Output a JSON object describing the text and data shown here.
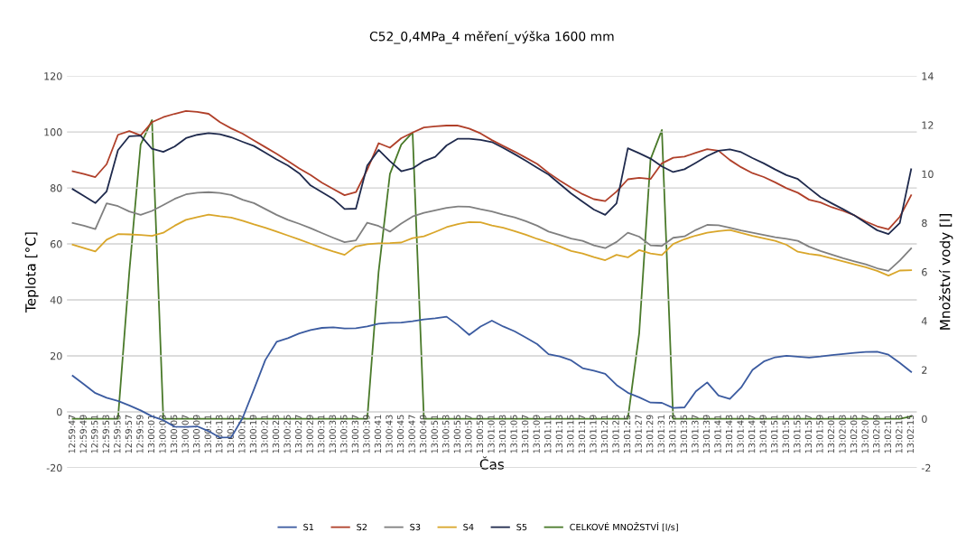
{
  "chart_data": {
    "type": "line",
    "title": "C52_0,4MPa_4 měření_výška 1600 mm",
    "xlabel": "Čas",
    "ylabel": "Teplota [°C]",
    "y2label": "Množství vody [l]",
    "categories": [
      "12:59:47",
      "12:59:49",
      "12:59:51",
      "12:59:53",
      "12:59:55",
      "12:59:57",
      "12:59:59",
      "13:00:01",
      "13:00:03",
      "13:00:05",
      "13:00:07",
      "13:00:09",
      "13:00:11",
      "13:00:13",
      "13:00:15",
      "13:00:17",
      "13:00:19",
      "13:00:21",
      "13:00:23",
      "13:00:25",
      "13:00:27",
      "13:00:29",
      "13:00:31",
      "13:00:33",
      "13:00:35",
      "13:00:37",
      "13:00:39",
      "13:00:41",
      "13:00:43",
      "13:00:45",
      "13:00:47",
      "13:00:49",
      "13:00:51",
      "13:00:53",
      "13:00:55",
      "13:00:57",
      "13:00:59",
      "13:01:01",
      "13:01:03",
      "13:01:05",
      "13:01:07",
      "13:01:09",
      "13:01:11",
      "13:01:13",
      "13:01:15",
      "13:01:17",
      "13:01:19",
      "13:01:21",
      "13:01:23",
      "13:01:25",
      "13:01:27",
      "13:01:29",
      "13:01:31",
      "13:01:33",
      "13:01:35",
      "13:01:37",
      "13:01:39",
      "13:01:41",
      "13:01:43",
      "13:01:45",
      "13:01:47",
      "13:01:49",
      "13:01:51",
      "13:01:53",
      "13:01:55",
      "13:01:57",
      "13:01:59",
      "13:02:01",
      "13:02:03",
      "13:02:05",
      "13:02:07",
      "13:02:09",
      "13:02:11",
      "13:02:13",
      "13:02:15"
    ],
    "series": [
      {
        "name": "S1",
        "color": "#3b5ba0",
        "values": [
          12.9,
          9.8,
          6.7,
          5,
          3.9,
          2.3,
          0.5,
          -1.6,
          -3,
          -5.3,
          -5.4,
          -5.2,
          -6.9,
          -9.2,
          -9.1,
          -2.2,
          8,
          18.5,
          25,
          26.3,
          28,
          29.2,
          30,
          30.2,
          29.8,
          29.9,
          30.5,
          31.5,
          31.8,
          31.9,
          32.4,
          33,
          33.4,
          34,
          31,
          27.5,
          30.5,
          32.6,
          30.5,
          28.8,
          26.5,
          24.2,
          20.6,
          19.8,
          18.4,
          15.6,
          14.7,
          13.6,
          9.6,
          6.8,
          5.2,
          3.3,
          3.2,
          1.4,
          1.6,
          7.3,
          10.5,
          5.8,
          4.6,
          8.7,
          15,
          18,
          19.5,
          20,
          19.7,
          19.4,
          19.8,
          20.3,
          20.7,
          21.1,
          21.4,
          21.5,
          20.4,
          17.5,
          14.3
        ]
      },
      {
        "name": "S2",
        "color": "#b0402a",
        "values": [
          86,
          85,
          83.9,
          88.5,
          99,
          100.3,
          98.8,
          103.5,
          105.3,
          106.5,
          107.5,
          107.2,
          106.5,
          103.5,
          101.3,
          99.4,
          97,
          94.6,
          92.2,
          89.6,
          87,
          84.6,
          81.9,
          79.6,
          77.4,
          78.5,
          86.5,
          96,
          94.4,
          97.8,
          99.8,
          101.6,
          102,
          102.3,
          102.3,
          101.2,
          99.5,
          97.1,
          95,
          93,
          90.8,
          88.6,
          85.4,
          82.6,
          80.1,
          77.8,
          76,
          75.3,
          78.7,
          83.1,
          83.6,
          83.2,
          88.8,
          90.8,
          91.2,
          92.6,
          93.9,
          93.3,
          90,
          87.4,
          85.3,
          83.9,
          82,
          79.9,
          78.3,
          75.8,
          74.8,
          73.1,
          71.8,
          70.2,
          68,
          66.3,
          65.2,
          69.7,
          77.4
        ]
      },
      {
        "name": "S3",
        "color": "#808080",
        "values": [
          67.5,
          66.5,
          65.3,
          74.5,
          73.5,
          71.6,
          70.4,
          71.8,
          73.9,
          76.1,
          77.7,
          78.3,
          78.5,
          78.2,
          77.5,
          75.8,
          74.6,
          72.5,
          70.4,
          68.6,
          67.2,
          65.6,
          63.9,
          62.2,
          60.6,
          61.3,
          67.6,
          66.4,
          64.4,
          67.3,
          69.8,
          71.1,
          72,
          72.9,
          73.4,
          73.3,
          72.4,
          71.6,
          70.5,
          69.5,
          68.1,
          66.5,
          64.4,
          63.2,
          61.9,
          61.1,
          59.5,
          58.5,
          60.7,
          64,
          62.6,
          59.5,
          59.3,
          62.2,
          62.7,
          65,
          66.8,
          66.7,
          65.8,
          64.8,
          64,
          63.2,
          62.4,
          61.8,
          61.1,
          59,
          57.5,
          56.2,
          54.9,
          53.8,
          52.7,
          51.3,
          50.4,
          54.1,
          58.4
        ]
      },
      {
        "name": "S4",
        "color": "#d9a62a",
        "values": [
          59.7,
          58.5,
          57.3,
          61.5,
          63.5,
          63.4,
          63.2,
          62.9,
          64,
          66.5,
          68.6,
          69.6,
          70.5,
          69.9,
          69.4,
          68.3,
          67,
          65.8,
          64.4,
          63,
          61.6,
          60.1,
          58.6,
          57.3,
          56.1,
          59.1,
          59.9,
          60.2,
          60.3,
          60.5,
          62.1,
          62.7,
          64.3,
          66,
          67.1,
          67.8,
          67.7,
          66.6,
          65.8,
          64.6,
          63.3,
          61.8,
          60.5,
          59.1,
          57.5,
          56.6,
          55.3,
          54.2,
          56.1,
          55.2,
          57.8,
          56.6,
          56,
          60,
          61.7,
          63,
          64,
          64.6,
          65,
          63.9,
          62.9,
          62,
          61.1,
          59.7,
          57.2,
          56.4,
          55.9,
          54.8,
          53.8,
          52.7,
          51.7,
          50.4,
          48.7,
          50.5,
          50.6
        ]
      },
      {
        "name": "S5",
        "color": "#1f2a4d",
        "values": [
          79.6,
          77.1,
          74.6,
          78.8,
          93.5,
          98.5,
          98.7,
          94,
          92.9,
          94.8,
          97.8,
          99,
          99.6,
          99.2,
          98.1,
          96.5,
          95,
          92.6,
          90.2,
          88,
          85.2,
          80.9,
          78.5,
          76.1,
          72.5,
          72.6,
          88,
          93.6,
          89.6,
          86,
          87,
          89.6,
          91.1,
          95.2,
          97.6,
          97.6,
          97.2,
          96.4,
          94.3,
          92.1,
          89.7,
          87.2,
          84.8,
          81.4,
          78,
          75.1,
          72.3,
          70.4,
          74.5,
          94.2,
          92.4,
          90.5,
          87.7,
          85.7,
          86.7,
          89,
          91.4,
          93.3,
          93.8,
          92.8,
          90.7,
          88.8,
          86.6,
          84.6,
          83.2,
          79.9,
          76.7,
          74.5,
          72.4,
          70.2,
          67.5,
          64.9,
          63.5,
          67.5,
          86.7
        ]
      },
      {
        "name": "CELKOVÉ MNOŽSTVÍ [l/s]",
        "color": "#4a7a2a",
        "axis": "y2",
        "values": [
          0,
          0,
          0,
          0,
          0,
          6,
          11.2,
          12.2,
          0,
          0,
          0,
          0,
          0,
          0,
          0,
          0,
          0,
          0,
          0,
          0,
          0,
          0,
          0,
          0,
          0,
          0,
          0,
          6,
          10,
          11.2,
          11.7,
          0,
          0,
          0,
          0,
          0,
          0,
          0,
          0,
          0,
          0,
          0,
          0,
          0,
          0,
          0,
          0,
          0,
          0,
          0,
          3.5,
          10.6,
          11.8,
          0,
          0,
          0,
          0,
          0,
          0,
          0,
          0,
          0,
          0,
          0,
          0,
          0,
          0,
          0,
          0,
          0,
          0,
          0,
          0,
          0,
          0.1
        ]
      }
    ],
    "ylim": [
      -20,
      120
    ],
    "yticks": [
      -20,
      0,
      20,
      40,
      60,
      80,
      100,
      120
    ],
    "y2lim": [
      -2,
      14
    ],
    "y2ticks": [
      -2,
      0,
      2,
      4,
      6,
      8,
      10,
      12,
      14
    ],
    "grid": "y",
    "legend": "bottom",
    "marker": "none",
    "line_style": "solid"
  }
}
